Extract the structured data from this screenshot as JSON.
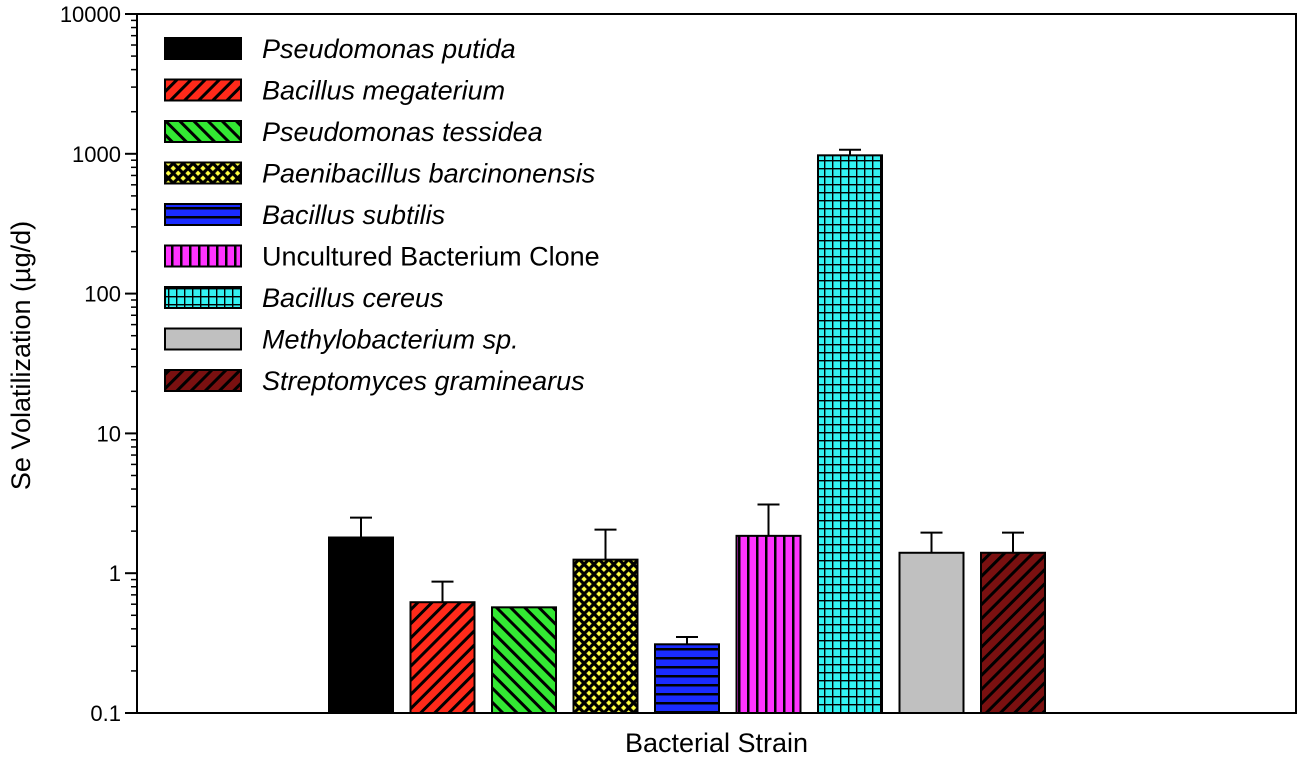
{
  "chart_data": {
    "type": "bar",
    "title": "",
    "xlabel": "Bacterial Strain",
    "ylabel": "Se Volatilization (µg/d)",
    "yscale": "log",
    "ylim": [
      0.1,
      10000
    ],
    "yticks": [
      "0.1",
      "1",
      "10",
      "100",
      "1000",
      "10000"
    ],
    "grid": false,
    "legend_position": "top-left",
    "series": [
      {
        "name": "Pseudomonas putida",
        "value": 1.8,
        "error": 0.7,
        "color": "#000000",
        "pattern": "solid",
        "italic": true
      },
      {
        "name": "Bacillus megaterium",
        "value": 0.62,
        "error": 0.25,
        "color": "#ff2a1a",
        "pattern": "diagonal-up",
        "italic": true
      },
      {
        "name": "Pseudomonas tessidea",
        "value": 0.57,
        "error": 0,
        "color": "#33e833",
        "pattern": "diagonal-down",
        "italic": true
      },
      {
        "name": "Paenibacillus barcinonensis",
        "value": 1.25,
        "error": 0.8,
        "color": "#ffff44",
        "pattern": "crosshatch",
        "italic": true
      },
      {
        "name": "Bacillus subtilis",
        "value": 0.31,
        "error": 0.04,
        "color": "#1a2bff",
        "pattern": "horizontal",
        "italic": true
      },
      {
        "name": "Uncultured Bacterium Clone",
        "value": 1.85,
        "error": 1.25,
        "color": "#ff33ff",
        "pattern": "vertical",
        "italic": false
      },
      {
        "name": "Bacillus cereus",
        "value": 975,
        "error": 95,
        "color": "#33f3f3",
        "pattern": "grid",
        "italic": true
      },
      {
        "name": "Methylobacterium sp.",
        "value": 1.4,
        "error": 0.55,
        "color": "#c0c0c0",
        "pattern": "solid",
        "italic": true
      },
      {
        "name": "Streptomyces graminearus",
        "value": 1.4,
        "error": 0.55,
        "color": "#7a1010",
        "pattern": "diagonal-up",
        "italic": true
      }
    ]
  }
}
